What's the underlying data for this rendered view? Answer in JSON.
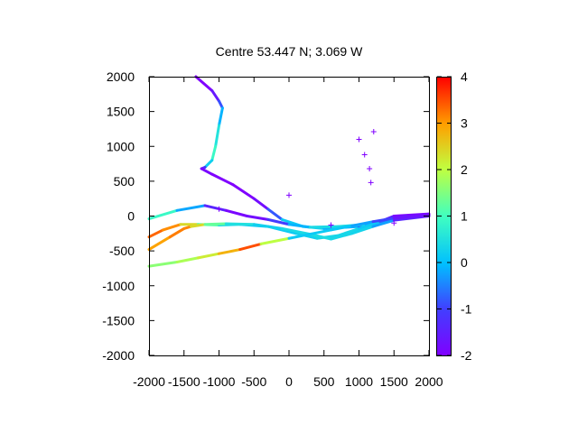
{
  "chart_data": {
    "type": "scatter",
    "title": "Centre 53.447 N; 3.069  W",
    "xlabel": "",
    "ylabel": "",
    "xlim": [
      -2000,
      2000
    ],
    "ylim": [
      -2000,
      2000
    ],
    "x_ticks": [
      "-2000",
      "-1500",
      "-1000",
      "-500",
      "0",
      "500",
      "1000",
      "1500",
      "2000"
    ],
    "y_ticks": [
      "2000",
      "1500",
      "1000",
      "500",
      "0",
      "-500",
      "-1000",
      "-1500",
      "-2000"
    ],
    "colorbar": {
      "range": [
        -2,
        4
      ],
      "ticks": [
        "4",
        "3",
        "2",
        "1",
        "0",
        "-1",
        "-2"
      ],
      "palette": "rainbow"
    },
    "grid": false,
    "tracks": [
      {
        "points": [
          [
            -1330,
            2000,
            -2
          ],
          [
            -1100,
            1800,
            -2
          ],
          [
            -1000,
            1650,
            -1.2
          ],
          [
            -950,
            1550,
            -0.5
          ],
          [
            -1000,
            1300,
            0.3
          ],
          [
            -1050,
            1000,
            0.8
          ],
          [
            -1100,
            800,
            1
          ],
          [
            -1200,
            700,
            -0.5
          ],
          [
            -1250,
            680,
            -1.8
          ],
          [
            -1100,
            600,
            -2
          ],
          [
            -800,
            450,
            -2
          ],
          [
            -500,
            250,
            -2
          ],
          [
            -300,
            100,
            -1.6
          ],
          [
            -100,
            -50,
            0
          ],
          [
            200,
            -150,
            0.3
          ],
          [
            500,
            -180,
            0.2
          ],
          [
            1000,
            -150,
            -0.5
          ],
          [
            1300,
            -80,
            -1.2
          ],
          [
            1500,
            0,
            -1.8
          ],
          [
            2000,
            30,
            -2
          ]
        ]
      },
      {
        "points": [
          [
            -2000,
            -40,
            1.2
          ],
          [
            -1600,
            80,
            0.6
          ],
          [
            -1200,
            150,
            -1
          ],
          [
            -900,
            80,
            -1.8
          ],
          [
            -600,
            0,
            -2
          ],
          [
            -300,
            -50,
            -1.6
          ],
          [
            0,
            -120,
            -0.5
          ],
          [
            300,
            -160,
            0.3
          ],
          [
            700,
            -150,
            0.5
          ],
          [
            1100,
            -120,
            0.3
          ],
          [
            1400,
            -60,
            -1
          ],
          [
            1700,
            0,
            -1.8
          ],
          [
            2000,
            20,
            -2
          ]
        ]
      },
      {
        "points": [
          [
            -2000,
            -300,
            3.5
          ],
          [
            -1800,
            -200,
            3.2
          ],
          [
            -1550,
            -120,
            3
          ],
          [
            -1300,
            -120,
            1.8
          ],
          [
            -1000,
            -130,
            0.5
          ],
          [
            -700,
            -120,
            0.2
          ],
          [
            -300,
            -150,
            0.1
          ],
          [
            100,
            -250,
            0.2
          ],
          [
            400,
            -320,
            0.3
          ],
          [
            700,
            -280,
            0.4
          ],
          [
            1000,
            -180,
            0.3
          ],
          [
            1300,
            -80,
            0
          ],
          [
            1600,
            -20,
            -1.5
          ],
          [
            2000,
            0,
            -2
          ]
        ]
      },
      {
        "points": [
          [
            -2000,
            -480,
            2.8
          ],
          [
            -1700,
            -300,
            3.1
          ],
          [
            -1500,
            -180,
            3.3
          ],
          [
            -1400,
            -150,
            3
          ],
          [
            -1200,
            -120,
            1.8
          ],
          [
            -900,
            -110,
            0.8
          ],
          [
            -500,
            -120,
            0.2
          ],
          [
            -100,
            -180,
            0.3
          ],
          [
            300,
            -260,
            0.5
          ],
          [
            600,
            -330,
            0.4
          ],
          [
            900,
            -250,
            0.3
          ],
          [
            1200,
            -150,
            0.3
          ],
          [
            1500,
            -60,
            -0.8
          ],
          [
            2000,
            0,
            -2
          ]
        ]
      },
      {
        "points": [
          [
            -2000,
            -720,
            1.5
          ],
          [
            -1600,
            -660,
            1.7
          ],
          [
            -1300,
            -600,
            2
          ],
          [
            -1000,
            -540,
            2.4
          ],
          [
            -700,
            -480,
            3.2
          ],
          [
            -400,
            -400,
            3.8
          ],
          [
            0,
            -320,
            0.2
          ],
          [
            300,
            -260,
            0.1
          ],
          [
            600,
            -200,
            0.2
          ],
          [
            900,
            -140,
            0
          ],
          [
            1200,
            -80,
            -0.5
          ],
          [
            1500,
            -30,
            -1.4
          ],
          [
            2000,
            10,
            -2
          ]
        ]
      }
    ],
    "marks": [
      [
        -1000,
        100
      ],
      [
        0,
        300
      ],
      [
        1000,
        1100
      ],
      [
        1080,
        880
      ],
      [
        1150,
        680
      ],
      [
        1170,
        480
      ],
      [
        1210,
        1210
      ],
      [
        1500,
        -100
      ],
      [
        600,
        -130
      ]
    ]
  }
}
